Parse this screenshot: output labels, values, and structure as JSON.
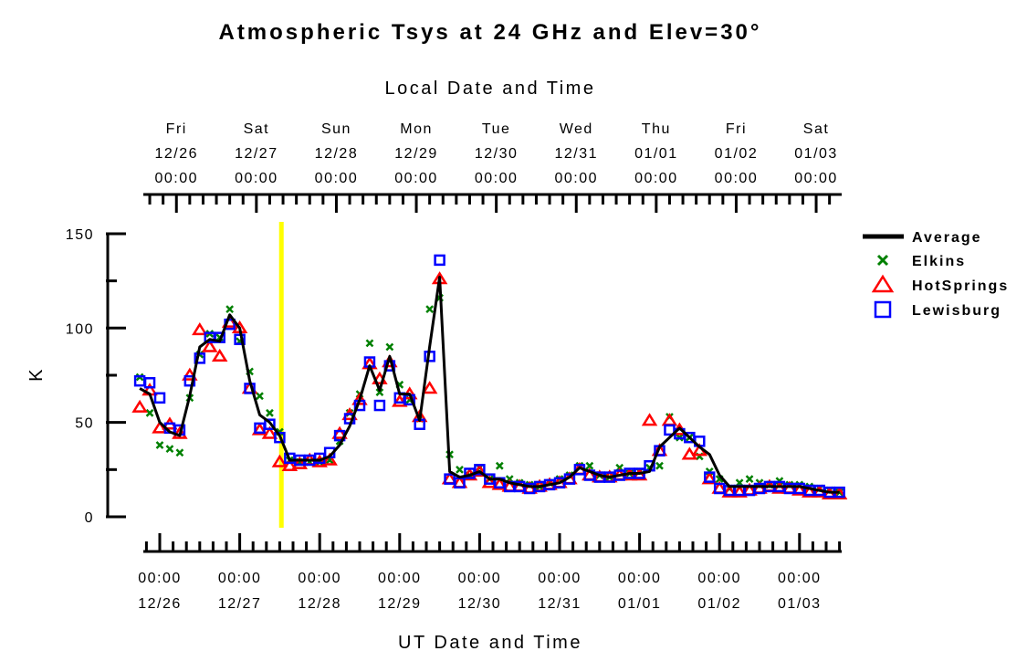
{
  "chart_data": {
    "type": "line",
    "title": "Atmospheric Tsys at 24 GHz and Elev=30°",
    "xlabel": "UT Date and Time",
    "x2label": "Local Date and Time",
    "ylabel": "K",
    "ylim": [
      0,
      150
    ],
    "yticks": [
      "0",
      "50",
      "100",
      "150"
    ],
    "x_units": "hours since 12/26 00:00 UT",
    "xlim": [
      -5,
      210
    ],
    "bottom_ticks": [
      {
        "time": "00:00",
        "date": "12/26"
      },
      {
        "time": "00:00",
        "date": "12/27"
      },
      {
        "time": "00:00",
        "date": "12/28"
      },
      {
        "time": "00:00",
        "date": "12/29"
      },
      {
        "time": "00:00",
        "date": "12/30"
      },
      {
        "time": "00:00",
        "date": "12/31"
      },
      {
        "time": "00:00",
        "date": "01/01"
      },
      {
        "time": "00:00",
        "date": "01/02"
      },
      {
        "time": "00:00",
        "date": "01/03"
      }
    ],
    "top_ticks": [
      {
        "day": "Fri",
        "date": "12/26",
        "time": "00:00"
      },
      {
        "day": "Sat",
        "date": "12/27",
        "time": "00:00"
      },
      {
        "day": "Sun",
        "date": "12/28",
        "time": "00:00"
      },
      {
        "day": "Mon",
        "date": "12/29",
        "time": "00:00"
      },
      {
        "day": "Tue",
        "date": "12/30",
        "time": "00:00"
      },
      {
        "day": "Wed",
        "date": "12/31",
        "time": "00:00"
      },
      {
        "day": "Thu",
        "date": "01/01",
        "time": "00:00"
      },
      {
        "day": "Fri",
        "date": "01/02",
        "time": "00:00"
      },
      {
        "day": "Sat",
        "date": "01/03",
        "time": "00:00"
      }
    ],
    "local_offset_hours": -5,
    "current_time_marker_hours": 36.5,
    "legend_position": "top-right",
    "x_start": -6,
    "x_step": 3,
    "series": [
      {
        "name": "Average",
        "marker": "line",
        "color": "#000000",
        "values": [
          68,
          65,
          50,
          45,
          43,
          64,
          90,
          94,
          93,
          107,
          100,
          72,
          54,
          50,
          43,
          30,
          30,
          30,
          30,
          32,
          38,
          48,
          62,
          80,
          67,
          85,
          65,
          65,
          51,
          90,
          127,
          24,
          21,
          22,
          24,
          20,
          20,
          18,
          17,
          16,
          16,
          17,
          18,
          21,
          26,
          24,
          22,
          21,
          22,
          23,
          23,
          24,
          37,
          42,
          47,
          42,
          37,
          33,
          22,
          16,
          16,
          16,
          16,
          16,
          16,
          16,
          16,
          15,
          14,
          13,
          13
        ]
      },
      {
        "name": "Elkins",
        "marker": "x",
        "color": "#008000",
        "values": [
          74,
          55,
          38,
          36,
          34,
          63,
          86,
          97,
          95,
          110,
          93,
          77,
          64,
          55,
          45,
          30,
          29,
          29,
          29,
          30,
          40,
          55,
          65,
          92,
          66,
          90,
          70,
          62,
          52,
          110,
          116,
          33,
          25,
          22,
          26,
          20,
          27,
          20,
          18,
          17,
          16,
          18,
          20,
          22,
          27,
          27,
          22,
          21,
          26,
          23,
          24,
          26,
          27,
          53,
          42,
          42,
          32,
          24,
          20,
          15,
          18,
          20,
          18,
          17,
          19,
          17,
          17,
          16,
          15,
          14,
          13
        ]
      },
      {
        "name": "HotSprings",
        "marker": "triangle",
        "color": "#ff0000",
        "values": [
          58,
          67,
          47,
          49,
          44,
          75,
          99,
          90,
          85,
          103,
          100,
          68,
          46,
          44,
          29,
          27,
          28,
          30,
          29,
          30,
          44,
          54,
          62,
          81,
          73,
          82,
          61,
          65,
          53,
          68,
          126,
          20,
          18,
          22,
          24,
          18,
          17,
          16,
          16,
          15,
          16,
          17,
          18,
          20,
          25,
          22,
          21,
          21,
          22,
          22,
          22,
          51,
          35,
          51,
          46,
          33,
          35,
          20,
          15,
          13,
          13,
          14,
          15,
          16,
          15,
          15,
          14,
          13,
          13,
          12,
          12
        ]
      },
      {
        "name": "Lewisburg",
        "marker": "square",
        "color": "#0000ff",
        "values": [
          72,
          71,
          63,
          47,
          46,
          72,
          84,
          95,
          95,
          102,
          94,
          68,
          47,
          49,
          42,
          31,
          30,
          30,
          31,
          34,
          43,
          52,
          59,
          82,
          59,
          80,
          63,
          62,
          49,
          85,
          136,
          20,
          18,
          23,
          25,
          20,
          18,
          16,
          16,
          15,
          16,
          17,
          18,
          20,
          25,
          22,
          21,
          21,
          22,
          23,
          23,
          27,
          35,
          46,
          44,
          42,
          40,
          21,
          15,
          14,
          14,
          14,
          15,
          16,
          16,
          15,
          15,
          14,
          14,
          13,
          13
        ]
      }
    ],
    "marker_color": "#ffff00"
  }
}
